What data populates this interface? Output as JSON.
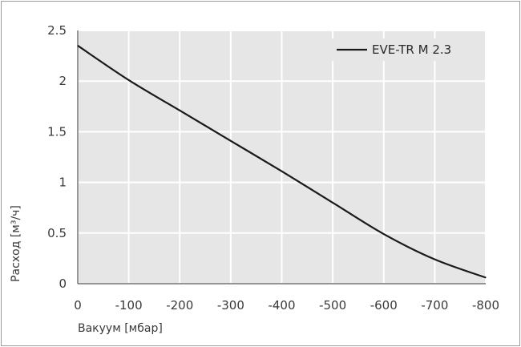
{
  "chart_data": {
    "type": "line",
    "xlabel": "Вакуум [мбар]",
    "ylabel": "Расход [м³/ч]",
    "xlim": [
      0,
      -800
    ],
    "ylim": [
      0,
      2.5
    ],
    "x_ticks": [
      0,
      -100,
      -200,
      -300,
      -400,
      -500,
      -600,
      -700,
      -800
    ],
    "y_ticks": [
      0,
      0.5,
      1,
      1.5,
      2,
      2.5
    ],
    "y_tick_labels": [
      "0",
      "0.5",
      "1",
      "1.5",
      "2",
      "2.5"
    ],
    "grid": true,
    "legend_position": "top-right",
    "series": [
      {
        "name": "EVE-TR M 2.3",
        "color": "#1a1a1a",
        "x": [
          0,
          -100,
          -200,
          -300,
          -400,
          -500,
          -600,
          -700,
          -800
        ],
        "y": [
          2.35,
          2.01,
          1.71,
          1.41,
          1.11,
          0.8,
          0.49,
          0.24,
          0.06
        ]
      }
    ]
  },
  "colors": {
    "plot_background": "#e6e6e6",
    "grid": "#ffffff",
    "axis": "#555555"
  }
}
